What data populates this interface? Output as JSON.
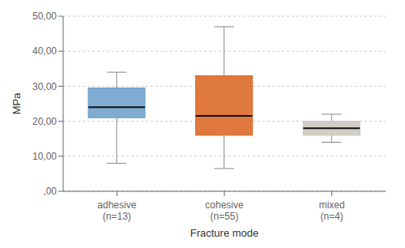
{
  "chart_data": {
    "type": "box",
    "categories": [
      "adhesive\n(n=13)",
      "cohesive\n(n=55)",
      "mixed\n(n=4)"
    ],
    "boxes": [
      {
        "whisker_low": 8.0,
        "q1": 21.0,
        "median": 24.0,
        "q3": 29.5,
        "whisker_high": 34.0
      },
      {
        "whisker_low": 6.5,
        "q1": 16.0,
        "median": 21.5,
        "q3": 33.0,
        "whisker_high": 47.0
      },
      {
        "whisker_low": 14.0,
        "q1": 16.0,
        "median": 18.0,
        "q3": 20.0,
        "whisker_high": 22.0
      }
    ],
    "colors": [
      "#6a9ec9",
      "#d9621c",
      "#c9c6bb"
    ],
    "ylim": [
      0,
      50
    ],
    "yticks": [
      {
        "value": 0,
        "label": ",00"
      },
      {
        "value": 10,
        "label": "10,00"
      },
      {
        "value": 20,
        "label": "20,00"
      },
      {
        "value": 30,
        "label": "30,00"
      },
      {
        "value": 40,
        "label": "40,00"
      },
      {
        "value": 50,
        "label": "50,00"
      }
    ],
    "ylabel": "MPa",
    "xlabel": "Fracture mode",
    "grid": true
  }
}
